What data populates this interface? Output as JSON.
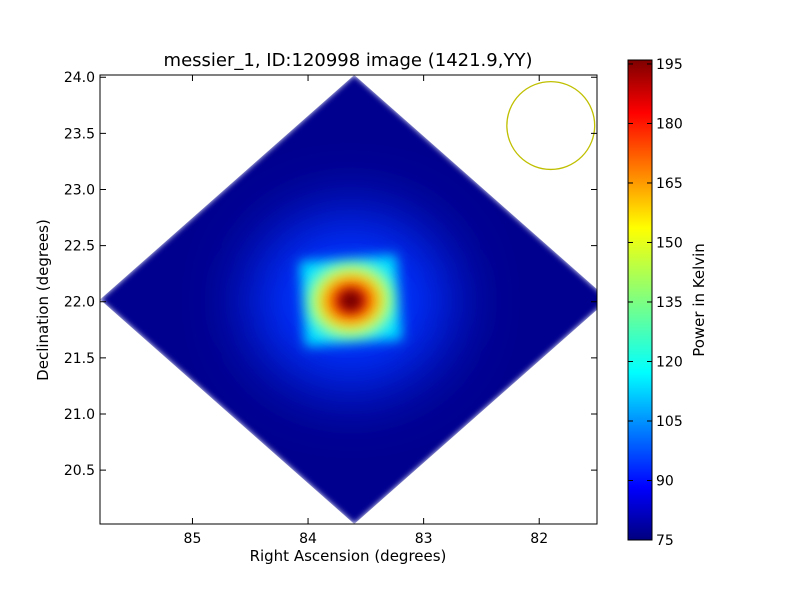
{
  "chart_data": {
    "type": "heatmap",
    "title": "messier_1, ID:120998 image (1421.9,YY)",
    "xlabel": "Right Ascension (degrees)",
    "ylabel": "Declination (degrees)",
    "xlim": [
      85.8,
      81.5
    ],
    "ylim": [
      20.02,
      24.02
    ],
    "x_ticks": [
      85,
      84,
      83,
      82
    ],
    "x_tick_labels": [
      "85",
      "84",
      "83",
      "82"
    ],
    "y_ticks": [
      20.5,
      21.0,
      21.5,
      22.0,
      22.5,
      23.0,
      23.5,
      24.0
    ],
    "y_tick_labels": [
      "20.5",
      "21.0",
      "21.5",
      "22.0",
      "22.5",
      "23.0",
      "23.5",
      "24.0"
    ],
    "colorbar": {
      "label": "Power in Kelvin",
      "range": [
        75,
        196
      ],
      "ticks": [
        75,
        90,
        105,
        120,
        135,
        150,
        165,
        180,
        195
      ],
      "tick_labels": [
        "75",
        "90",
        "105",
        "120",
        "135",
        "150",
        "165",
        "180",
        "195"
      ],
      "colormap": "jet"
    },
    "field": {
      "center": [
        83.6,
        22.02
      ],
      "half_width_ra": 2.2,
      "half_width_dec": 2.0,
      "background_value": 76
    },
    "source": {
      "center": [
        83.63,
        22.01
      ],
      "peak_value": 195,
      "half_size_ra": 0.42,
      "half_size_dec": 0.38
    },
    "beam_circle": {
      "center": [
        81.9,
        23.57
      ],
      "radius_ra": 0.38,
      "color": "#bfbf00"
    }
  }
}
